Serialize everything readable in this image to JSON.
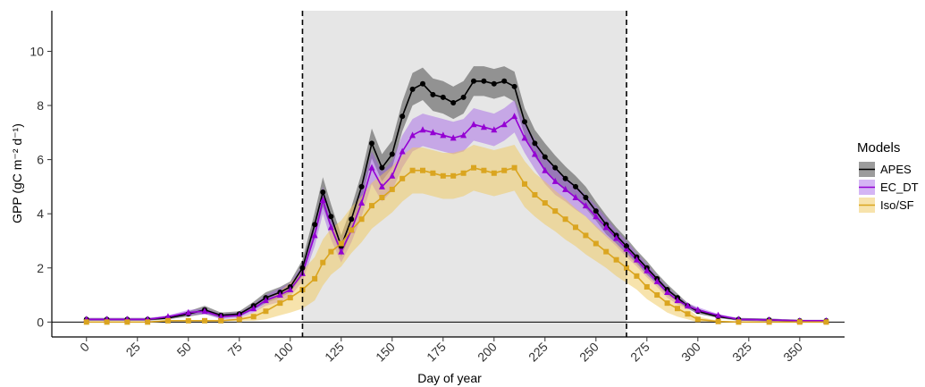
{
  "chart_data": {
    "type": "line",
    "xlabel": "Day of year",
    "ylabel": "GPP (gC m⁻² d⁻¹)",
    "xlim": [
      -17,
      372
    ],
    "ylim": [
      -0.55,
      11.5
    ],
    "x_ticks": [
      0,
      25,
      50,
      75,
      100,
      125,
      150,
      175,
      200,
      225,
      250,
      275,
      300,
      325,
      350
    ],
    "y_ticks": [
      0,
      2,
      4,
      6,
      8,
      10
    ],
    "grid": false,
    "legend_placement": "right",
    "legend_title": "Models",
    "shaded_period": [
      106,
      265
    ],
    "x": [
      0,
      10,
      20,
      30,
      40,
      50,
      58,
      66,
      75,
      82,
      88,
      95,
      100,
      106,
      112,
      116,
      120,
      125,
      130,
      135,
      140,
      145,
      150,
      155,
      160,
      165,
      170,
      175,
      180,
      185,
      190,
      195,
      200,
      205,
      210,
      215,
      220,
      225,
      230,
      235,
      240,
      245,
      250,
      255,
      260,
      265,
      270,
      275,
      280,
      285,
      290,
      295,
      300,
      310,
      320,
      335,
      350,
      363
    ],
    "series": [
      {
        "name": "APES",
        "color": "#000000",
        "marker": "circle",
        "values": [
          0.1,
          0.1,
          0.1,
          0.1,
          0.15,
          0.3,
          0.45,
          0.25,
          0.3,
          0.6,
          0.9,
          1.1,
          1.3,
          2.0,
          3.6,
          4.8,
          3.9,
          2.8,
          3.8,
          5.0,
          6.6,
          5.7,
          6.2,
          7.6,
          8.6,
          8.8,
          8.4,
          8.3,
          8.1,
          8.3,
          8.9,
          8.9,
          8.8,
          8.9,
          8.7,
          7.4,
          6.6,
          6.1,
          5.7,
          5.3,
          5.0,
          4.6,
          4.1,
          3.6,
          3.2,
          2.8,
          2.4,
          2.0,
          1.6,
          1.2,
          0.9,
          0.6,
          0.4,
          0.2,
          0.1,
          0.08,
          0.05,
          0.05
        ],
        "band": [
          0.05,
          0.05,
          0.05,
          0.05,
          0.05,
          0.1,
          0.15,
          0.1,
          0.1,
          0.15,
          0.2,
          0.2,
          0.2,
          0.3,
          0.45,
          0.55,
          0.45,
          0.4,
          0.45,
          0.5,
          0.55,
          0.5,
          0.5,
          0.55,
          0.6,
          0.6,
          0.6,
          0.6,
          0.6,
          0.6,
          0.55,
          0.55,
          0.55,
          0.55,
          0.55,
          0.5,
          0.5,
          0.5,
          0.45,
          0.45,
          0.4,
          0.4,
          0.35,
          0.35,
          0.3,
          0.3,
          0.25,
          0.25,
          0.2,
          0.2,
          0.15,
          0.1,
          0.1,
          0.05,
          0.05,
          0.05,
          0.03,
          0.03
        ]
      },
      {
        "name": "EC_DT",
        "color": "#9400D3",
        "marker": "triangle",
        "values": [
          0.1,
          0.1,
          0.1,
          0.1,
          0.2,
          0.35,
          0.4,
          0.2,
          0.25,
          0.5,
          0.8,
          1.0,
          1.2,
          1.8,
          3.2,
          4.5,
          3.5,
          2.6,
          3.4,
          4.4,
          5.7,
          5.0,
          5.4,
          6.3,
          6.9,
          7.1,
          7.0,
          6.9,
          6.8,
          6.9,
          7.3,
          7.2,
          7.1,
          7.3,
          7.6,
          6.8,
          6.2,
          5.6,
          5.2,
          4.9,
          4.6,
          4.3,
          3.9,
          3.5,
          3.1,
          2.7,
          2.3,
          1.9,
          1.5,
          1.1,
          0.8,
          0.6,
          0.45,
          0.25,
          0.1,
          0.08,
          0.05,
          0.05
        ],
        "band": [
          0.05,
          0.05,
          0.05,
          0.05,
          0.05,
          0.1,
          0.1,
          0.1,
          0.1,
          0.15,
          0.2,
          0.25,
          0.25,
          0.3,
          0.4,
          0.5,
          0.45,
          0.4,
          0.45,
          0.5,
          0.6,
          0.55,
          0.55,
          0.6,
          0.6,
          0.6,
          0.6,
          0.6,
          0.6,
          0.6,
          0.6,
          0.6,
          0.6,
          0.6,
          0.6,
          0.55,
          0.55,
          0.5,
          0.5,
          0.45,
          0.45,
          0.4,
          0.4,
          0.35,
          0.3,
          0.3,
          0.25,
          0.25,
          0.2,
          0.2,
          0.15,
          0.1,
          0.1,
          0.05,
          0.05,
          0.05,
          0.03,
          0.03
        ]
      },
      {
        "name": "Iso/SF",
        "color": "#DAA520",
        "marker": "square",
        "values": [
          0.0,
          0.0,
          0.0,
          0.0,
          0.05,
          0.05,
          0.05,
          0.05,
          0.1,
          0.2,
          0.4,
          0.7,
          0.9,
          1.2,
          1.6,
          2.2,
          2.6,
          2.9,
          3.4,
          3.8,
          4.3,
          4.6,
          4.9,
          5.3,
          5.6,
          5.6,
          5.5,
          5.4,
          5.4,
          5.5,
          5.7,
          5.6,
          5.5,
          5.6,
          5.7,
          5.1,
          4.7,
          4.4,
          4.1,
          3.8,
          3.5,
          3.2,
          2.9,
          2.6,
          2.3,
          2.0,
          1.7,
          1.3,
          1.0,
          0.7,
          0.5,
          0.3,
          0.1,
          0.02,
          0.0,
          0.0,
          0.0,
          0.0
        ],
        "band": [
          0.02,
          0.02,
          0.02,
          0.02,
          0.02,
          0.02,
          0.03,
          0.03,
          0.05,
          0.15,
          0.3,
          0.45,
          0.55,
          0.7,
          0.8,
          0.85,
          0.85,
          0.85,
          0.85,
          0.85,
          0.85,
          0.85,
          0.85,
          0.85,
          0.85,
          0.85,
          0.85,
          0.85,
          0.85,
          0.85,
          0.85,
          0.85,
          0.85,
          0.85,
          0.85,
          0.85,
          0.8,
          0.8,
          0.75,
          0.75,
          0.7,
          0.7,
          0.65,
          0.6,
          0.6,
          0.55,
          0.5,
          0.45,
          0.4,
          0.35,
          0.3,
          0.2,
          0.1,
          0.03,
          0.02,
          0.02,
          0.02,
          0.02
        ]
      }
    ]
  }
}
